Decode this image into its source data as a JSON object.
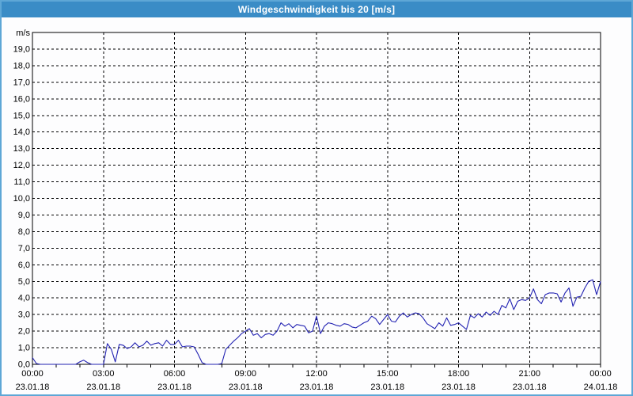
{
  "window": {
    "title": "Windgeschwindigkeit bis 20 [m/s]"
  },
  "colors": {
    "titlebar_bg": "#3a8cc6",
    "titlebar_text": "#ffffff",
    "frame_border": "#5ea7d6",
    "plot_background": "#fdfdfe",
    "axis": "#000000",
    "grid": "#000000",
    "series_line": "#2222b2"
  },
  "chart_data": {
    "type": "line",
    "title": "Windgeschwindigkeit bis 20 [m/s]",
    "y_unit_label": "m/s",
    "ylim": [
      0,
      20
    ],
    "y_tick_step": 1.0,
    "y_tick_labels": [
      "0,0",
      "1,0",
      "2,0",
      "3,0",
      "4,0",
      "5,0",
      "6,0",
      "7,0",
      "8,0",
      "9,0",
      "10,0",
      "11,0",
      "12,0",
      "13,0",
      "14,0",
      "15,0",
      "16,0",
      "17,0",
      "18,0",
      "19,0"
    ],
    "xlim_hours": [
      0,
      24
    ],
    "x_minor_tick_hours": 1,
    "x_major_ticks": [
      {
        "hour": 0,
        "time": "00:00",
        "date": "23.01.18"
      },
      {
        "hour": 3,
        "time": "03:00",
        "date": "23.01.18"
      },
      {
        "hour": 6,
        "time": "06:00",
        "date": "23.01.18"
      },
      {
        "hour": 9,
        "time": "09:00",
        "date": "23.01.18"
      },
      {
        "hour": 12,
        "time": "12:00",
        "date": "23.01.18"
      },
      {
        "hour": 15,
        "time": "15:00",
        "date": "23.01.18"
      },
      {
        "hour": 18,
        "time": "18:00",
        "date": "23.01.18"
      },
      {
        "hour": 21,
        "time": "21:00",
        "date": "23.01.18"
      },
      {
        "hour": 24,
        "time": "00:00",
        "date": "24.01.18"
      }
    ],
    "grid": "dashed",
    "legend": "none",
    "series": [
      {
        "name": "Windgeschwindigkeit",
        "unit": "m/s",
        "step_minutes": 10,
        "values": [
          0.4,
          0.05,
          0,
          0,
          0,
          0,
          0,
          0,
          0,
          0,
          0,
          0,
          0.15,
          0.25,
          0.1,
          0,
          0,
          0,
          0,
          1.25,
          0.9,
          0.15,
          1.2,
          1.15,
          0.95,
          1.05,
          1.3,
          1.05,
          1.15,
          1.4,
          1.15,
          1.25,
          1.3,
          1.1,
          1.45,
          1.2,
          1.2,
          1.45,
          1.05,
          1.1,
          1.1,
          1.05,
          0.6,
          0.1,
          0,
          0,
          0,
          0,
          0.05,
          0.9,
          1.15,
          1.4,
          1.6,
          1.85,
          2.0,
          2.15,
          1.75,
          1.85,
          1.6,
          1.8,
          1.85,
          1.75,
          2.0,
          2.5,
          2.3,
          2.45,
          2.2,
          2.4,
          2.35,
          2.3,
          1.9,
          2.0,
          2.9,
          1.85,
          2.3,
          2.5,
          2.45,
          2.35,
          2.3,
          2.45,
          2.4,
          2.25,
          2.2,
          2.35,
          2.5,
          2.6,
          2.9,
          2.75,
          2.4,
          2.7,
          3.0,
          2.6,
          2.55,
          2.9,
          3.1,
          2.85,
          3.0,
          3.1,
          3.05,
          2.8,
          2.45,
          2.3,
          2.15,
          2.5,
          2.3,
          2.8,
          2.35,
          2.4,
          2.5,
          2.3,
          2.1,
          2.95,
          2.8,
          3.05,
          2.85,
          3.15,
          2.95,
          3.2,
          3.0,
          3.55,
          3.4,
          3.95,
          3.3,
          3.8,
          3.9,
          3.85,
          4.0,
          4.55,
          3.9,
          3.65,
          4.2,
          4.3,
          4.3,
          4.25,
          3.75,
          4.3,
          4.6,
          3.5,
          4.05,
          4.1,
          4.6,
          5.0,
          5.1,
          4.2,
          5.0
        ]
      }
    ]
  }
}
